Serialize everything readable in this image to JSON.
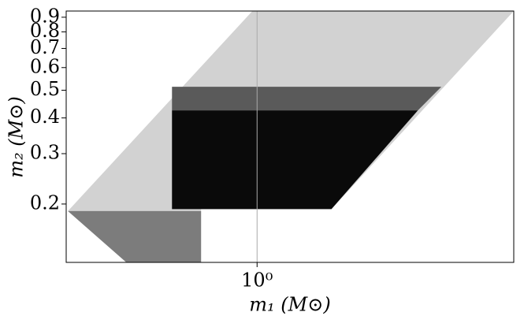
{
  "chart_data": {
    "type": "area",
    "xlabel": "m₁ (M⊙)",
    "ylabel": "m₂ (M⊙)",
    "xscale": "log",
    "yscale": "log",
    "xlim": [
      0.215,
      7.9
    ],
    "ylim": [
      0.125,
      0.946
    ],
    "xticks": [
      {
        "value": 1,
        "label": "10⁰"
      }
    ],
    "yticks": [
      0.2,
      0.3,
      0.4,
      0.5,
      0.6,
      0.7,
      0.8,
      0.9
    ],
    "xgrid": true,
    "series": [
      {
        "color": "#d2d2d2",
        "x": [
          0.218,
          0.963,
          7.9,
          1.82,
          0.637,
          0.637,
          0.349
        ],
        "y": [
          0.189,
          0.946,
          0.946,
          0.192,
          0.192,
          0.125,
          0.125
        ]
      },
      {
        "color": "#7c7c7c",
        "x": [
          0.218,
          0.637,
          0.637,
          0.349
        ],
        "y": [
          0.189,
          0.189,
          0.125,
          0.125
        ]
      },
      {
        "color": "#5a5a5a",
        "x": [
          0.504,
          0.504,
          4.41,
          3.65
        ],
        "y": [
          0.425,
          0.514,
          0.514,
          0.425
        ]
      },
      {
        "color": "#0a0a0a",
        "x": [
          0.504,
          0.504,
          3.65,
          1.82
        ],
        "y": [
          0.192,
          0.425,
          0.425,
          0.192
        ]
      }
    ]
  }
}
